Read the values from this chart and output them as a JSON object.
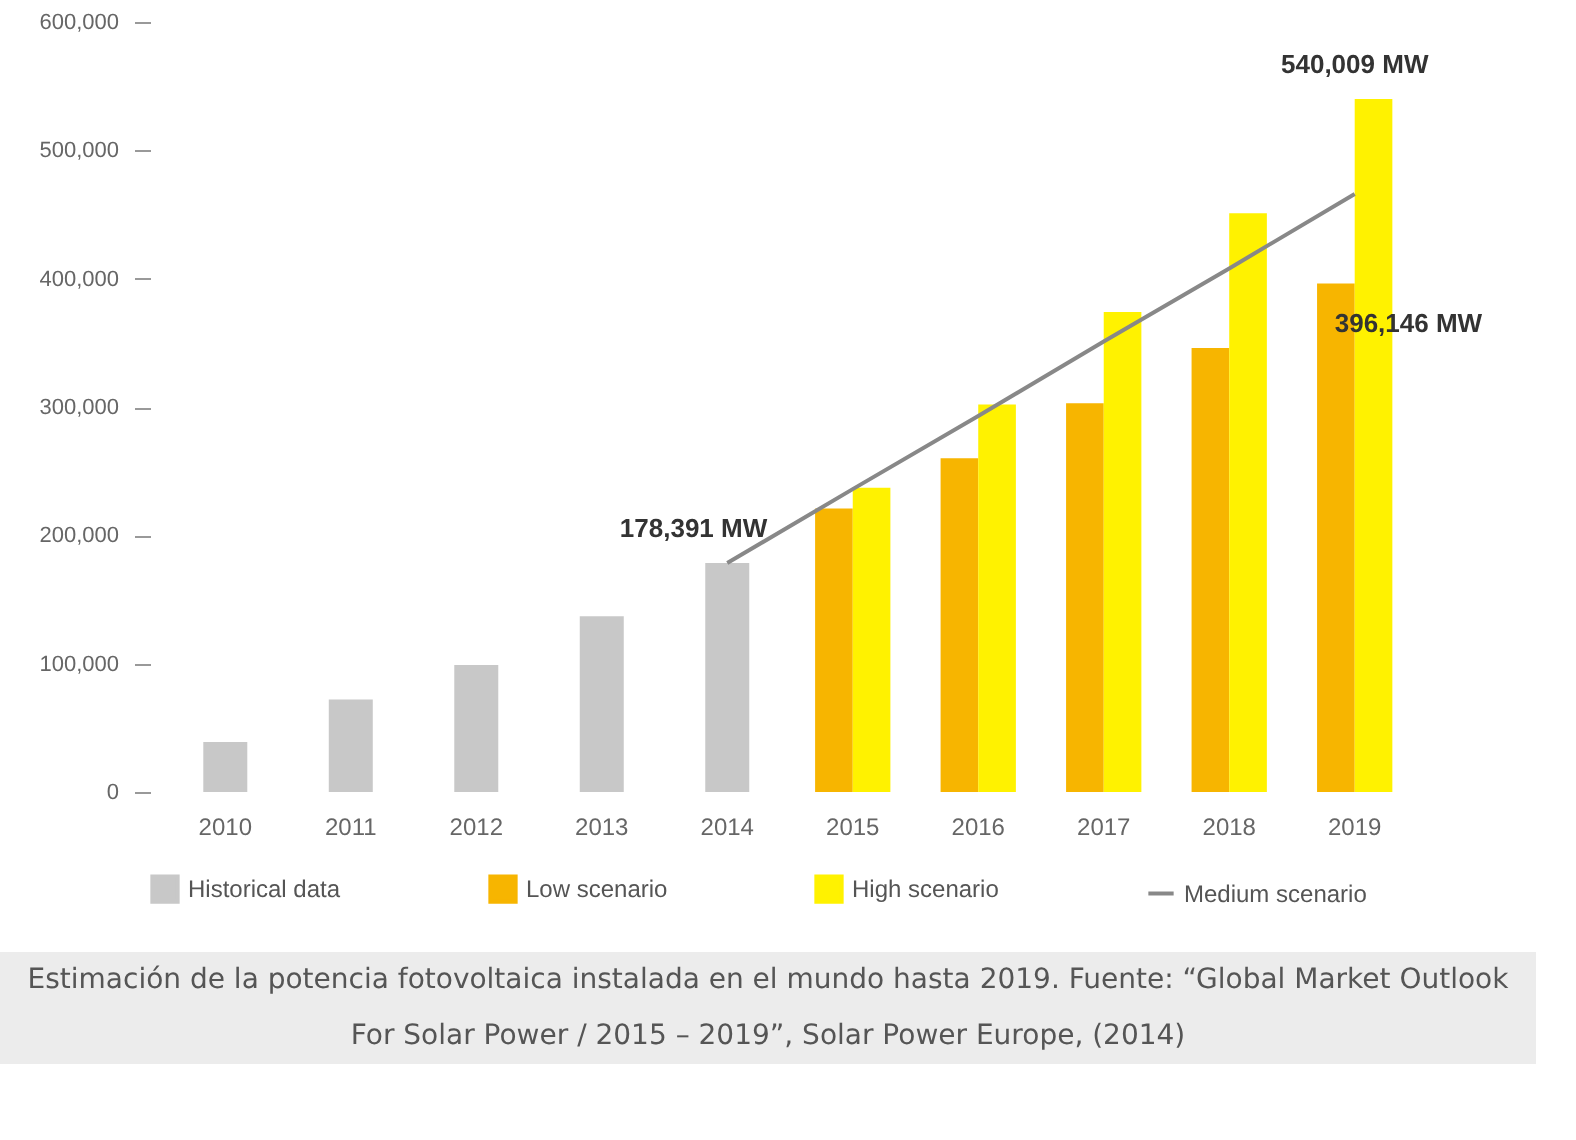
{
  "chart_data": {
    "type": "bar",
    "categories": [
      "2010",
      "2011",
      "2012",
      "2013",
      "2014",
      "2015",
      "2016",
      "2017",
      "2018",
      "2019"
    ],
    "series": [
      {
        "name": "Historical data",
        "color": "#c8c8c8",
        "values": [
          39000,
          72000,
          99000,
          137000,
          178391,
          null,
          null,
          null,
          null,
          null
        ]
      },
      {
        "name": "Low scenario",
        "color": "#f7b500",
        "values": [
          null,
          null,
          null,
          null,
          null,
          221000,
          260000,
          303000,
          346000,
          396146
        ]
      },
      {
        "name": "High scenario",
        "color": "#fff200",
        "values": [
          null,
          null,
          null,
          null,
          null,
          237000,
          302000,
          374000,
          451000,
          540009
        ]
      },
      {
        "name": "Medium scenario",
        "type": "line",
        "color": "#888888",
        "values": [
          null,
          null,
          null,
          null,
          178391,
          236000,
          293000,
          351000,
          408000,
          466000
        ]
      }
    ],
    "ylim": [
      0,
      600000
    ],
    "yticks": [
      {
        "value": 0,
        "label": "0"
      },
      {
        "value": 100000,
        "label": "100,000"
      },
      {
        "value": 200000,
        "label": "200,000"
      },
      {
        "value": 300000,
        "label": "300,000"
      },
      {
        "value": 400000,
        "label": "400,000"
      },
      {
        "value": 500000,
        "label": "500,000"
      },
      {
        "value": 600000,
        "label": "600,000"
      }
    ],
    "annotations": [
      {
        "text": "178,391 MW",
        "x": "2014",
        "y": 178391
      },
      {
        "text": "540,009 MW",
        "x": "2019",
        "y": 540009
      },
      {
        "text": "396,146 MW",
        "x": "2019",
        "y": 396146
      },
      "Estimación de la potencia fotovoltaica instalada en el mundo hasta 2019. Fuente: “Global Market Outlook For Solar Power / 2015 – 2019”, Solar Power Europe, (2014)"
    ],
    "grid": false,
    "legend": "bottom"
  }
}
